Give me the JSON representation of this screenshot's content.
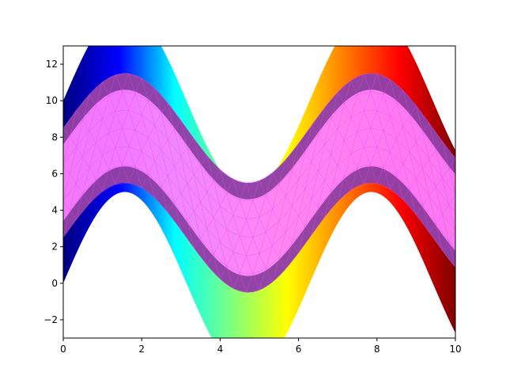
{
  "chart_data": {
    "type": "area",
    "title": "",
    "xlabel": "",
    "ylabel": "",
    "xlim": [
      0,
      10
    ],
    "ylim": [
      -3,
      13
    ],
    "grid": false,
    "x_ticks": [
      0,
      2,
      4,
      6,
      8,
      10
    ],
    "y_ticks": [
      -2,
      0,
      2,
      4,
      6,
      8,
      10,
      12
    ],
    "series": [
      {
        "kind": "outer-band",
        "center": "5 + 5*sin(x)",
        "lower_offset": -5,
        "upper_offset": 5,
        "colormap": "jet",
        "color_by": "x",
        "colormap_stops": [
          "#00007f",
          "#0000ff",
          "#00ffff",
          "#7fff7f",
          "#ffff00",
          "#ff7f00",
          "#ff0000",
          "#7f0000"
        ]
      },
      {
        "kind": "inner-triangulated-mesh",
        "center": "5.5 + 3*sin(x)",
        "half_width": 3,
        "fill_color": "#ff7fff",
        "mesh_color": "#ee44ee",
        "edge_fade": "dark"
      }
    ]
  }
}
